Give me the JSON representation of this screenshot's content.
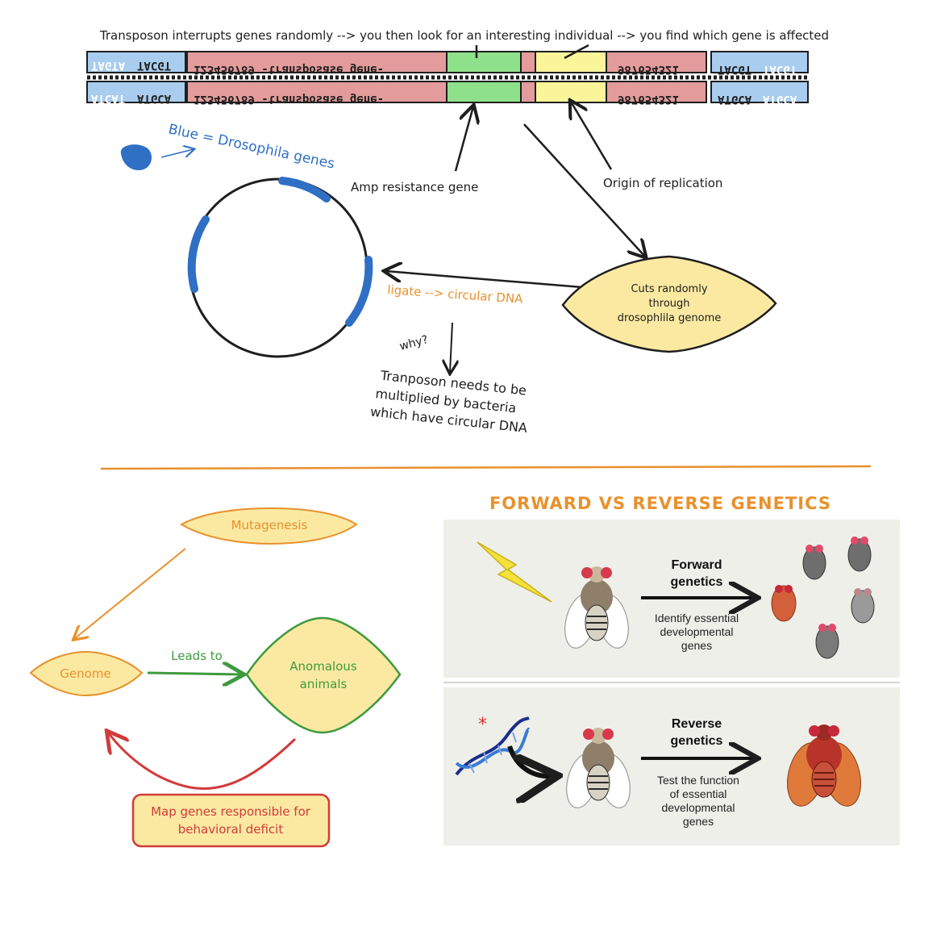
{
  "top_caption": "Transposon interrupts genes randomly --> you then look for an interesting individual --> you find which gene is affected",
  "strand": {
    "left_end_top": [
      "TAGTA",
      "TACGT"
    ],
    "left_end_bottom": [
      "ATCAT",
      "ATGCA"
    ],
    "transposase_text": "123456789 -transposase gene-",
    "right_numbers": "987654321",
    "right_end_top": [
      "TACGT",
      "TACGT"
    ],
    "right_end_bottom": [
      "ATGCA",
      "ATGCA"
    ]
  },
  "labels": {
    "blue_legend": "Blue = Drosophila genes",
    "amp": "Amp resistance gene",
    "origin": "Origin of replication",
    "ligate": "ligate --> circular DNA",
    "why": "why?",
    "why_answer": [
      "Tranposon needs to be",
      "multiplied by bacteria",
      "which have circular DNA"
    ],
    "cuts": [
      "Cuts randomly",
      "through",
      "drosophlila genome"
    ]
  },
  "flow": {
    "mutagenesis": "Mutagenesis",
    "genome": "Genome",
    "leads_to": "Leads to",
    "anomalous": [
      "Anomalous",
      "animals"
    ],
    "map_genes": [
      "Map genes responsible for",
      "behavioral deficit"
    ]
  },
  "fr_title": "FORWARD VS REVERSE GENETICS",
  "forward": {
    "title": [
      "Forward",
      "genetics"
    ],
    "desc": [
      "Identify essential",
      "developmental",
      "genes"
    ]
  },
  "reverse": {
    "title": [
      "Reverse",
      "genetics"
    ],
    "desc": [
      "Test the function",
      "of essential",
      "developmental",
      "genes"
    ]
  },
  "colors": {
    "orange": "#e8912c",
    "blue": "#2f6fc4",
    "green": "#3e9a3e",
    "red": "#d33a3a",
    "yellow_fill": "#fbe9a2",
    "pink": "#e39b9b",
    "green_fill": "#8fe08a",
    "yellow_box": "#fbf59a",
    "light_blue": "#a9cdef"
  }
}
